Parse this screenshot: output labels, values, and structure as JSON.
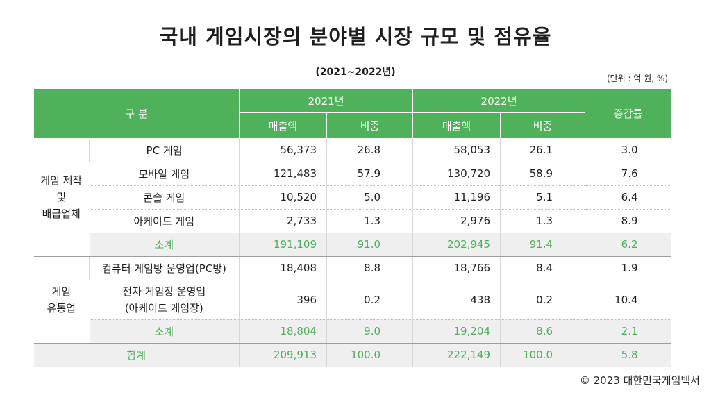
{
  "title": "국내 게임시장의 분야별 시장 규모 및 점유율",
  "period": "(2021~2022년)",
  "unit": "(단위 : 억 원, %)",
  "header": {
    "category": "구 분",
    "year1": "2021년",
    "year2": "2022년",
    "sales": "매출액",
    "share": "비중",
    "growth": "증감률"
  },
  "group1": {
    "label_line1": "게임 제작",
    "label_line2": "및",
    "label_line3": "배급업체",
    "rows": [
      {
        "name": "PC 게임",
        "sales2021": "56,373",
        "share2021": "26.8",
        "sales2022": "58,053",
        "share2022": "26.1",
        "growth": "3.0"
      },
      {
        "name": "모바일 게임",
        "sales2021": "121,483",
        "share2021": "57.9",
        "sales2022": "130,720",
        "share2022": "58.9",
        "growth": "7.6"
      },
      {
        "name": "콘솔 게임",
        "sales2021": "10,520",
        "share2021": "5.0",
        "sales2022": "11,196",
        "share2022": "5.1",
        "growth": "6.4"
      },
      {
        "name": "아케이드 게임",
        "sales2021": "2,733",
        "share2021": "1.3",
        "sales2022": "2,976",
        "share2022": "1.3",
        "growth": "8.9"
      }
    ],
    "subtotal": {
      "name": "소계",
      "sales2021": "191,109",
      "share2021": "91.0",
      "sales2022": "202,945",
      "share2022": "91.4",
      "growth": "6.2"
    }
  },
  "group2": {
    "label_line1": "게임",
    "label_line2": "유통업",
    "rows": [
      {
        "name": "컴퓨터 게임방 운영업(PC방)",
        "sales2021": "18,408",
        "share2021": "8.8",
        "sales2022": "18,766",
        "share2022": "8.4",
        "growth": "1.9"
      },
      {
        "name_line1": "전자 게임장 운영업",
        "name_line2": "(아케이드 게임장)",
        "sales2021": "396",
        "share2021": "0.2",
        "sales2022": "438",
        "share2022": "0.2",
        "growth": "10.4"
      }
    ],
    "subtotal": {
      "name": "소계",
      "sales2021": "18,804",
      "share2021": "9.0",
      "sales2022": "19,204",
      "share2022": "8.6",
      "growth": "2.1"
    }
  },
  "total": {
    "name": "합계",
    "sales2021": "209,913",
    "share2021": "100.0",
    "sales2022": "222,149",
    "share2022": "100.0",
    "growth": "5.8"
  },
  "source": "© 2023 대한민국게임백서"
}
